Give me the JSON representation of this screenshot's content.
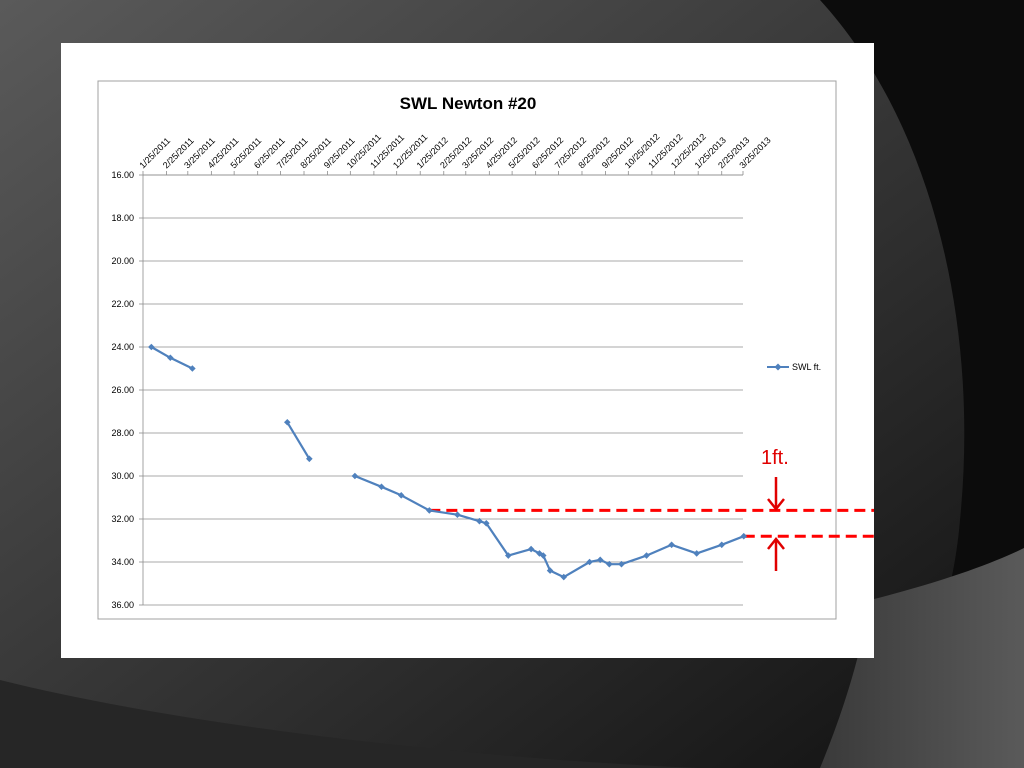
{
  "chart_data": {
    "type": "line",
    "title": "SWL Newton #20",
    "xlabel": "",
    "ylabel": "",
    "x_axis_type": "date",
    "x_range": [
      "2011-01-25",
      "2013-03-25"
    ],
    "x_tick_labels": [
      "1/25/2011",
      "2/25/2011",
      "3/25/2011",
      "4/25/2011",
      "5/25/2011",
      "6/25/2011",
      "7/25/2011",
      "8/25/2011",
      "9/25/2011",
      "10/25/2011",
      "11/25/2011",
      "12/25/2011",
      "1/25/2012",
      "2/25/2012",
      "3/25/2012",
      "4/25/2012",
      "5/25/2012",
      "6/25/2012",
      "7/25/2012",
      "8/25/2012",
      "9/25/2012",
      "10/25/2012",
      "11/25/2012",
      "12/25/2012",
      "1/25/2013",
      "2/25/2013",
      "3/25/2013"
    ],
    "y_tick_labels": [
      "16.00",
      "18.00",
      "20.00",
      "22.00",
      "24.00",
      "26.00",
      "28.00",
      "30.00",
      "32.00",
      "34.00",
      "36.00"
    ],
    "ylim": [
      16,
      36
    ],
    "y_reversed": true,
    "x_axis_position": "top",
    "grid": true,
    "legend_position": "right",
    "series": [
      {
        "name": "SWL  ft.",
        "color": "#4f81bd",
        "marker": "diamond",
        "segments": [
          [
            {
              "x": "2011-02-05",
              "y": 24.0
            },
            {
              "x": "2011-03-02",
              "y": 24.5
            },
            {
              "x": "2011-03-31",
              "y": 25.0
            }
          ],
          [
            {
              "x": "2011-08-03",
              "y": 27.5
            },
            {
              "x": "2011-09-01",
              "y": 29.2
            }
          ],
          [
            {
              "x": "2011-10-31",
              "y": 30.0
            },
            {
              "x": "2011-12-05",
              "y": 30.5
            },
            {
              "x": "2011-12-31",
              "y": 30.9
            },
            {
              "x": "2012-02-06",
              "y": 31.6
            },
            {
              "x": "2012-03-14",
              "y": 31.8
            },
            {
              "x": "2012-04-12",
              "y": 32.1
            },
            {
              "x": "2012-04-21",
              "y": 32.2
            },
            {
              "x": "2012-05-20",
              "y": 33.7
            },
            {
              "x": "2012-06-19",
              "y": 33.4
            },
            {
              "x": "2012-06-30",
              "y": 33.6
            },
            {
              "x": "2012-07-05",
              "y": 33.7
            },
            {
              "x": "2012-07-14",
              "y": 34.4
            },
            {
              "x": "2012-08-01",
              "y": 34.7
            },
            {
              "x": "2012-09-04",
              "y": 34.0
            },
            {
              "x": "2012-09-18",
              "y": 33.9
            },
            {
              "x": "2012-09-30",
              "y": 34.1
            },
            {
              "x": "2012-10-16",
              "y": 34.1
            },
            {
              "x": "2012-11-18",
              "y": 33.7
            },
            {
              "x": "2012-12-21",
              "y": 33.2
            },
            {
              "x": "2013-01-23",
              "y": 33.6
            },
            {
              "x": "2013-02-25",
              "y": 33.2
            },
            {
              "x": "2013-03-26",
              "y": 32.8
            }
          ]
        ]
      }
    ],
    "reference_lines": [
      {
        "y": 31.6,
        "color": "#ff0000",
        "style": "dashed",
        "x_start": "2012-02-06"
      },
      {
        "y": 32.8,
        "color": "#ff0000",
        "style": "dashed",
        "x_start": "2013-03-26"
      }
    ],
    "annotation": {
      "text": "1ft.",
      "color": "#e00000"
    }
  }
}
